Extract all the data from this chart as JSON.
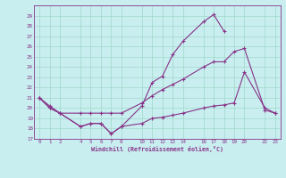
{
  "xlabel": "Windchill (Refroidissement éolien,°C)",
  "background_color": "#c8eef0",
  "grid_color": "#a0d8c8",
  "line_color": "#883388",
  "xlim": [
    -0.5,
    23.5
  ],
  "ylim": [
    17,
    30
  ],
  "yticks": [
    17,
    18,
    19,
    20,
    21,
    22,
    23,
    24,
    25,
    26,
    27,
    28,
    29
  ],
  "xtick_positions": [
    0,
    1,
    2,
    4,
    5,
    6,
    7,
    8,
    10,
    11,
    12,
    13,
    14,
    16,
    17,
    18,
    19,
    20,
    22,
    23
  ],
  "xtick_labels": [
    "0",
    "1",
    "2",
    "4",
    "5",
    "6",
    "7",
    "8",
    "10",
    "11",
    "12",
    "13",
    "14",
    "16",
    "17",
    "18",
    "19",
    "20",
    "22",
    "23"
  ],
  "line1_x": [
    0,
    1,
    2,
    4,
    5,
    6,
    7,
    8,
    10,
    11,
    12,
    13,
    14,
    16,
    17,
    18
  ],
  "line1_y": [
    21.0,
    20.0,
    19.5,
    18.2,
    18.5,
    18.5,
    17.5,
    18.2,
    20.2,
    22.5,
    23.1,
    25.2,
    26.5,
    28.4,
    29.1,
    27.5
  ],
  "line2_x": [
    0,
    1,
    2,
    4,
    5,
    6,
    7,
    8,
    10,
    11,
    12,
    13,
    14,
    16,
    17,
    18,
    19,
    20,
    22,
    23
  ],
  "line2_y": [
    21.0,
    20.2,
    19.5,
    19.5,
    19.5,
    19.5,
    19.5,
    19.5,
    20.5,
    21.2,
    21.8,
    22.3,
    22.8,
    24.0,
    24.5,
    24.5,
    25.5,
    25.8,
    19.8,
    19.5
  ],
  "line3_x": [
    0,
    1,
    2,
    4,
    5,
    6,
    7,
    8,
    10,
    11,
    12,
    13,
    14,
    16,
    17,
    18,
    19,
    20,
    22,
    23
  ],
  "line3_y": [
    21.0,
    20.0,
    19.5,
    18.2,
    18.5,
    18.5,
    17.5,
    18.2,
    18.5,
    19.0,
    19.1,
    19.3,
    19.5,
    20.0,
    20.2,
    20.3,
    20.5,
    23.5,
    20.0,
    19.5
  ]
}
